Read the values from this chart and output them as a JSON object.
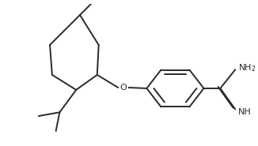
{
  "bg_color": "#ffffff",
  "line_color": "#2a2a2a",
  "text_color": "#2a2a2a",
  "figsize": [
    3.26,
    1.85
  ],
  "dpi": 100,
  "lw": 1.4
}
